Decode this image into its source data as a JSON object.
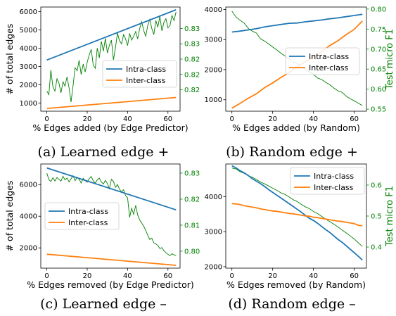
{
  "colors": {
    "intra": "#1f77b4",
    "inter": "#ff7f0e",
    "f1": "#008000",
    "axis": "#000000"
  },
  "chart_data": [
    {
      "id": "a",
      "type": "line",
      "caption": "(a) Learned edge +",
      "xlabel": "% Edges added (by Edge Predictor)",
      "ylabel": "# of total edges",
      "y2label": "",
      "xlim": [
        -3,
        66
      ],
      "ylim": [
        550,
        6250
      ],
      "y2lim": [
        0.8165,
        0.8335
      ],
      "xticks": [
        "0",
        "20",
        "40",
        "60"
      ],
      "yticks": [
        1000,
        2000,
        3000,
        4000,
        5000,
        6000
      ],
      "y2ticks": [
        0.82,
        0.8225,
        0.825,
        0.8275,
        0.83
      ],
      "y2ticklabels": [
        "0.82",
        "0.82",
        "0.82",
        "0.83",
        "0.83"
      ],
      "legend": {
        "position": "center-right",
        "entries": [
          "Intra-class",
          "Inter-class"
        ]
      },
      "series": [
        {
          "name": "Intra-class",
          "x": [
            0,
            64
          ],
          "values": [
            3350,
            6100
          ]
        },
        {
          "name": "Inter-class",
          "x": [
            0,
            64
          ],
          "values": [
            700,
            1300
          ]
        }
      ],
      "f1": {
        "x": [
          0,
          1,
          2,
          3,
          4,
          5,
          6,
          7,
          8,
          9,
          10,
          11,
          12,
          13,
          14,
          15,
          16,
          17,
          18,
          19,
          20,
          21,
          22,
          23,
          24,
          25,
          26,
          27,
          28,
          29,
          30,
          31,
          32,
          33,
          34,
          35,
          36,
          37,
          38,
          39,
          40,
          41,
          42,
          43,
          44,
          45,
          46,
          47,
          48,
          49,
          50,
          51,
          52,
          53,
          54,
          55,
          56,
          57,
          58,
          59,
          60,
          61,
          62,
          63,
          64
        ],
        "values": [
          0.8198,
          0.8192,
          0.8232,
          0.8205,
          0.8198,
          0.8218,
          0.8211,
          0.8195,
          0.8213,
          0.8206,
          0.8221,
          0.8203,
          0.818,
          0.8207,
          0.8236,
          0.8231,
          0.8248,
          0.8225,
          0.8242,
          0.8229,
          0.8245,
          0.8257,
          0.8266,
          0.824,
          0.8235,
          0.8268,
          0.8252,
          0.8279,
          0.8263,
          0.8284,
          0.826,
          0.8273,
          0.8281,
          0.8249,
          0.8269,
          0.8293,
          0.828,
          0.8275,
          0.829,
          0.8283,
          0.8272,
          0.8292,
          0.8281,
          0.8287,
          0.8295,
          0.8283,
          0.83,
          0.8311,
          0.8297,
          0.8287,
          0.8305,
          0.8315,
          0.83,
          0.829,
          0.8313,
          0.8302,
          0.832,
          0.8296,
          0.831,
          0.8316,
          0.8301,
          0.8305,
          0.8321,
          0.8313,
          0.8327
        ]
      }
    },
    {
      "id": "b",
      "type": "line",
      "caption": "(b) Random edge +",
      "xlabel": "% Edges added (by Random)",
      "ylabel": "",
      "y2label": "Test micro F1",
      "xlim": [
        -3,
        66
      ],
      "ylim": [
        620,
        4080
      ],
      "y2lim": [
        0.545,
        0.805
      ],
      "xticks": [
        "0",
        "20",
        "40",
        "60"
      ],
      "yticks": [
        1000,
        2000,
        3000,
        4000
      ],
      "y2ticks": [
        0.55,
        0.6,
        0.65,
        0.7,
        0.75,
        0.8
      ],
      "y2ticklabels": [
        "0.55",
        "0.60",
        "0.65",
        "0.70",
        "0.75",
        "0.80"
      ],
      "legend": {
        "position": "center-right",
        "entries": [
          "Intra-class",
          "Inter-class"
        ]
      },
      "series": [
        {
          "name": "Intra-class",
          "x": [
            0,
            4,
            8,
            12,
            16,
            20,
            24,
            28,
            32,
            36,
            40,
            44,
            48,
            52,
            56,
            60,
            64
          ],
          "values": [
            3250,
            3280,
            3320,
            3360,
            3420,
            3460,
            3500,
            3540,
            3550,
            3590,
            3620,
            3650,
            3690,
            3720,
            3760,
            3800,
            3840
          ]
        },
        {
          "name": "Inter-class",
          "x": [
            0,
            4,
            8,
            12,
            16,
            20,
            24,
            28,
            32,
            36,
            40,
            44,
            48,
            52,
            56,
            60,
            64
          ],
          "values": [
            720,
            880,
            1050,
            1200,
            1400,
            1560,
            1740,
            1900,
            2100,
            2260,
            2420,
            2600,
            2800,
            2960,
            3160,
            3340,
            3620
          ]
        }
      ],
      "f1": {
        "x": [
          0,
          2,
          4,
          6,
          8,
          10,
          12,
          14,
          16,
          18,
          20,
          22,
          24,
          26,
          28,
          30,
          32,
          34,
          36,
          38,
          40,
          42,
          44,
          46,
          48,
          50,
          52,
          54,
          56,
          58,
          60,
          62,
          64
        ],
        "values": [
          0.795,
          0.78,
          0.772,
          0.765,
          0.752,
          0.745,
          0.74,
          0.726,
          0.72,
          0.713,
          0.705,
          0.698,
          0.69,
          0.683,
          0.676,
          0.668,
          0.664,
          0.655,
          0.65,
          0.643,
          0.637,
          0.628,
          0.624,
          0.617,
          0.611,
          0.603,
          0.596,
          0.592,
          0.583,
          0.576,
          0.571,
          0.565,
          0.559
        ]
      }
    },
    {
      "id": "c",
      "type": "line",
      "caption": "(c) Learned edge –",
      "xlabel": "% Edges removed (by Edge Predictor)",
      "ylabel": "# of total edges",
      "y2label": "",
      "xlim": [
        -3,
        66
      ],
      "ylim": [
        720,
        7300
      ],
      "y2lim": [
        0.7935,
        0.8335
      ],
      "xticks": [
        "0",
        "20",
        "40",
        "60"
      ],
      "yticks": [
        2000,
        4000,
        6000
      ],
      "y2ticks": [
        0.8,
        0.81,
        0.82,
        0.83
      ],
      "y2ticklabels": [
        "0.80",
        "0.81",
        "0.82",
        "0.83"
      ],
      "legend": {
        "position": "center-left",
        "entries": [
          "Intra-class",
          "Inter-class"
        ]
      },
      "series": [
        {
          "name": "Intra-class",
          "x": [
            0,
            64
          ],
          "values": [
            7050,
            4400
          ]
        },
        {
          "name": "Inter-class",
          "x": [
            0,
            64
          ],
          "values": [
            1600,
            900
          ]
        }
      ],
      "f1": {
        "x": [
          0,
          1,
          2,
          3,
          4,
          5,
          6,
          7,
          8,
          9,
          10,
          11,
          12,
          13,
          14,
          15,
          16,
          17,
          18,
          19,
          20,
          21,
          22,
          23,
          24,
          25,
          26,
          27,
          28,
          29,
          30,
          31,
          32,
          33,
          34,
          35,
          36,
          37,
          38,
          39,
          40,
          41,
          42,
          43,
          44,
          45,
          46,
          47,
          48,
          49,
          50,
          51,
          52,
          53,
          54,
          55,
          56,
          57,
          58,
          59,
          60,
          61,
          62,
          63,
          64
        ],
        "values": [
          0.83,
          0.8275,
          0.8268,
          0.8282,
          0.827,
          0.8283,
          0.8276,
          0.8269,
          0.8288,
          0.8274,
          0.8281,
          0.8266,
          0.8278,
          0.829,
          0.8271,
          0.8284,
          0.8276,
          0.8262,
          0.828,
          0.8271,
          0.8265,
          0.8279,
          0.8287,
          0.827,
          0.8262,
          0.8274,
          0.8281,
          0.8266,
          0.8258,
          0.8272,
          0.826,
          0.824,
          0.8276,
          0.8268,
          0.8245,
          0.8256,
          0.8238,
          0.8228,
          0.8236,
          0.8214,
          0.8205,
          0.813,
          0.8165,
          0.8142,
          0.8176,
          0.814,
          0.812,
          0.8108,
          0.8096,
          0.808,
          0.8061,
          0.8045,
          0.805,
          0.8032,
          0.8028,
          0.8022,
          0.801,
          0.8014,
          0.8002,
          0.7995,
          0.7988,
          0.7983,
          0.799,
          0.7986,
          0.7984
        ]
      }
    },
    {
      "id": "d",
      "type": "line",
      "caption": "(d) Random edge –",
      "xlabel": "% Edges removed (by Random)",
      "ylabel": "",
      "y2label": "Test micro F1",
      "xlim": [
        -3,
        66
      ],
      "ylim": [
        1960,
        4930
      ],
      "y2lim": [
        0.332,
        0.668
      ],
      "xticks": [
        "0",
        "20",
        "40",
        "60"
      ],
      "yticks": [
        2000,
        3000,
        4000
      ],
      "y2ticks": [
        0.4,
        0.5,
        0.6
      ],
      "y2ticklabels": [
        "0.4",
        "0.5",
        "0.6"
      ],
      "legend": {
        "position": "top-right",
        "entries": [
          "Intra-class",
          "Inter-class"
        ]
      },
      "series": [
        {
          "name": "Intra-class",
          "x": [
            0,
            2,
            4,
            6,
            8,
            10,
            12,
            14,
            16,
            18,
            20,
            22,
            24,
            26,
            28,
            30,
            32,
            34,
            36,
            38,
            40,
            42,
            44,
            46,
            48,
            50,
            52,
            54,
            56,
            58,
            60,
            62,
            64
          ],
          "values": [
            4880,
            4820,
            4740,
            4680,
            4600,
            4510,
            4440,
            4370,
            4290,
            4200,
            4120,
            4040,
            3960,
            3880,
            3800,
            3720,
            3640,
            3560,
            3470,
            3380,
            3320,
            3240,
            3150,
            3060,
            2980,
            2880,
            2780,
            2700,
            2600,
            2500,
            2400,
            2300,
            2190
          ]
        },
        {
          "name": "Inter-class",
          "x": [
            0,
            2,
            4,
            6,
            8,
            10,
            12,
            14,
            16,
            18,
            20,
            22,
            24,
            26,
            28,
            30,
            32,
            34,
            36,
            38,
            40,
            42,
            44,
            46,
            48,
            50,
            52,
            54,
            56,
            58,
            60,
            62,
            64
          ],
          "values": [
            3800,
            3790,
            3770,
            3740,
            3720,
            3700,
            3680,
            3650,
            3630,
            3610,
            3590,
            3580,
            3560,
            3540,
            3520,
            3510,
            3490,
            3470,
            3450,
            3440,
            3410,
            3400,
            3380,
            3360,
            3340,
            3320,
            3300,
            3290,
            3270,
            3250,
            3230,
            3180,
            3170
          ]
        }
      ],
      "f1": {
        "x": [
          0,
          2,
          4,
          6,
          8,
          10,
          12,
          14,
          16,
          18,
          20,
          22,
          24,
          26,
          28,
          30,
          32,
          34,
          36,
          38,
          40,
          42,
          44,
          46,
          48,
          50,
          52,
          54,
          56,
          58,
          60,
          62,
          64
        ],
        "values": [
          0.655,
          0.652,
          0.643,
          0.638,
          0.63,
          0.625,
          0.618,
          0.61,
          0.604,
          0.597,
          0.59,
          0.583,
          0.575,
          0.57,
          0.562,
          0.553,
          0.547,
          0.538,
          0.53,
          0.524,
          0.515,
          0.508,
          0.499,
          0.49,
          0.482,
          0.474,
          0.465,
          0.455,
          0.446,
          0.436,
          0.426,
          0.414,
          0.402
        ]
      }
    }
  ]
}
